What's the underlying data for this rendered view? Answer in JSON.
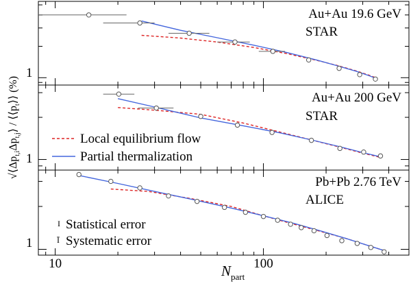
{
  "chart_data": {
    "type": "scatter",
    "x_scale": "log",
    "y_scale": "log",
    "xlabel_main": "N",
    "xlabel_sub": "part",
    "ylabel_main": "√⟨Δp",
    "ylabel_sub1": "t,i",
    "ylabel_mid": "Δp",
    "ylabel_sub2": "t,j",
    "ylabel_tail": "⟩ / ⟨⟨p",
    "ylabel_sub3": "t",
    "ylabel_end": "⟩⟩ (%)",
    "xlim": [
      8.3,
      500
    ],
    "x_ticks": [
      10,
      100
    ],
    "x_tick_labels": [
      "10",
      "100"
    ],
    "y_tick_labels": [
      "1",
      "1",
      "1"
    ],
    "legend": {
      "flow_label": "Local equilibrium flow",
      "therm_label": "Partial thermalization",
      "stat_label": "Statistical error",
      "syst_label": "Systematic error",
      "stat_symbol": "I",
      "syst_symbol": "Ī"
    },
    "panels": [
      {
        "name": "star-19",
        "system": "Au+Au 19.6 GeV",
        "experiment": "STAR",
        "ylim": [
          0.85,
          5.4
        ],
        "points": [
          {
            "x": 14.5,
            "y": 4.0,
            "xlo": 8.3,
            "xhi": 22
          },
          {
            "x": 25.5,
            "y": 3.35,
            "xlo": 17,
            "xhi": 30
          },
          {
            "x": 44,
            "y": 2.67,
            "xlo": 35,
            "xhi": 55
          },
          {
            "x": 73,
            "y": 2.2,
            "xlo": 60,
            "xhi": 86
          },
          {
            "x": 111,
            "y": 1.79,
            "xlo": 95,
            "xhi": 127
          },
          {
            "x": 165,
            "y": 1.48
          },
          {
            "x": 231,
            "y": 1.23
          },
          {
            "x": 290,
            "y": 1.07
          },
          {
            "x": 345,
            "y": 0.97
          }
        ],
        "flow": {
          "x": [
            26,
            40,
            60,
            90,
            130,
            180,
            230,
            280,
            320,
            350
          ],
          "y": [
            2.55,
            2.4,
            2.2,
            1.95,
            1.7,
            1.47,
            1.3,
            1.16,
            1.06,
            0.99
          ]
        },
        "therm": {
          "x": [
            26,
            40,
            60,
            90,
            130,
            180,
            230,
            280,
            320,
            350
          ],
          "y": [
            3.5,
            2.85,
            2.42,
            2.05,
            1.74,
            1.48,
            1.29,
            1.15,
            1.05,
            0.98
          ]
        }
      },
      {
        "name": "star-200",
        "system": "Au+Au 200 GeV",
        "experiment": "STAR",
        "ylim": [
          0.84,
          3.4
        ],
        "points": [
          {
            "x": 20.2,
            "y": 2.93,
            "xlo": 17,
            "xhi": 24
          },
          {
            "x": 30.6,
            "y": 2.33,
            "xlo": 25,
            "xhi": 37
          },
          {
            "x": 50,
            "y": 2.03
          },
          {
            "x": 75,
            "y": 1.76
          },
          {
            "x": 110,
            "y": 1.56
          },
          {
            "x": 170,
            "y": 1.37
          },
          {
            "x": 233,
            "y": 1.2
          },
          {
            "x": 303,
            "y": 1.13
          },
          {
            "x": 365,
            "y": 1.06
          }
        ],
        "flow": {
          "x": [
            20,
            30,
            50,
            80,
            120,
            170,
            230,
            300,
            360
          ],
          "y": [
            2.35,
            2.25,
            2.1,
            1.82,
            1.57,
            1.38,
            1.23,
            1.11,
            1.04
          ]
        },
        "therm": {
          "x": [
            20,
            30,
            50,
            80,
            120,
            170,
            230,
            300,
            360
          ],
          "y": [
            2.72,
            2.37,
            1.98,
            1.74,
            1.55,
            1.38,
            1.24,
            1.12,
            1.05
          ]
        }
      },
      {
        "name": "alice-276",
        "system": "Pb+Pb 2.76 TeV",
        "experiment": "ALICE",
        "ylim": [
          0.91,
          3.6
        ],
        "points": [
          {
            "x": 13,
            "y": 3.35
          },
          {
            "x": 18.5,
            "y": 3.0
          },
          {
            "x": 25.5,
            "y": 2.7
          },
          {
            "x": 35,
            "y": 2.37
          },
          {
            "x": 48,
            "y": 2.17
          },
          {
            "x": 65,
            "y": 1.97
          },
          {
            "x": 82,
            "y": 1.82
          },
          {
            "x": 100,
            "y": 1.7
          },
          {
            "x": 117,
            "y": 1.6
          },
          {
            "x": 135,
            "y": 1.5
          },
          {
            "x": 152,
            "y": 1.42
          },
          {
            "x": 175,
            "y": 1.35
          },
          {
            "x": 202,
            "y": 1.25
          },
          {
            "x": 238,
            "y": 1.15
          },
          {
            "x": 282,
            "y": 1.1
          },
          {
            "x": 328,
            "y": 1.03
          },
          {
            "x": 380,
            "y": 0.96
          }
        ],
        "flow": {
          "x": [
            18.5,
            28,
            45,
            70,
            100,
            140,
            190,
            250,
            320,
            380
          ],
          "y": [
            2.65,
            2.55,
            2.27,
            2.0,
            1.72,
            1.5,
            1.33,
            1.19,
            1.06,
            0.98
          ]
        },
        "therm": {
          "x": [
            13,
            20,
            30,
            45,
            70,
            100,
            140,
            190,
            250,
            320,
            380
          ],
          "y": [
            3.3,
            2.9,
            2.55,
            2.25,
            1.95,
            1.72,
            1.52,
            1.34,
            1.19,
            1.06,
            0.98
          ]
        }
      }
    ]
  }
}
